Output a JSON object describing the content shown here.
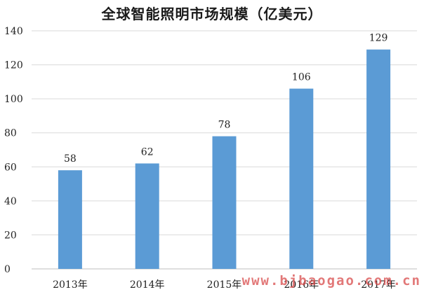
{
  "chart_data": {
    "type": "bar",
    "title": "全球智能照明市场规模（亿美元）",
    "categories": [
      "2013年",
      "2014年",
      "2015年",
      "2016年",
      "2017年"
    ],
    "values": [
      58,
      62,
      78,
      106,
      129
    ],
    "ylim": [
      0,
      140
    ],
    "yticks": [
      0,
      20,
      40,
      60,
      80,
      100,
      120,
      140
    ],
    "grid": true,
    "legend": "none",
    "bar_color": "#5b9bd5"
  },
  "watermark": "www.bjbaogao.com.cn"
}
